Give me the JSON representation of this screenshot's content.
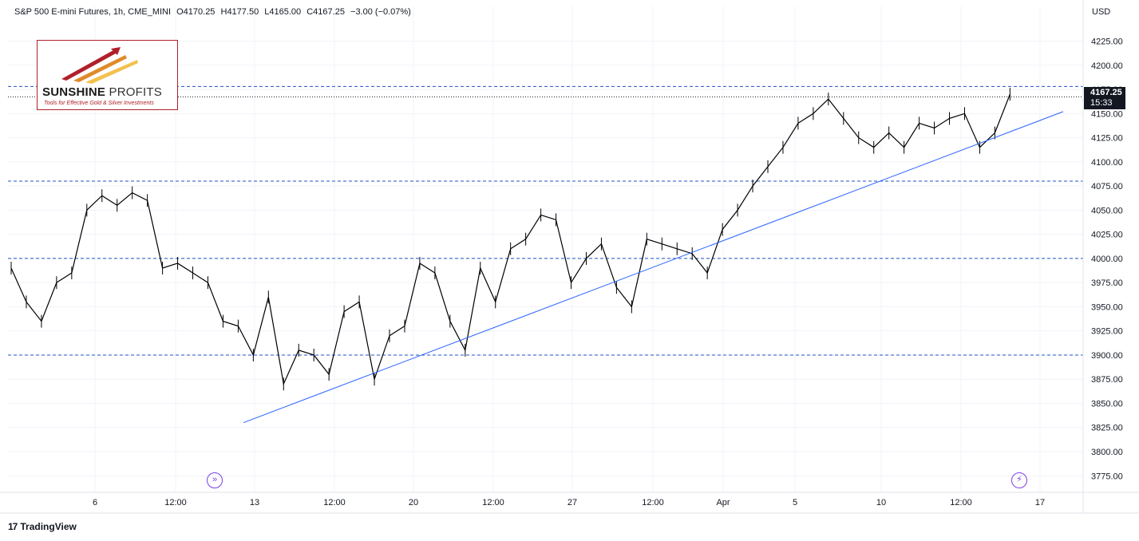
{
  "header": {
    "symbol": "S&P 500 E-mini Futures, 1h, CME_MINI",
    "open": "O4170.25",
    "high": "H4177.50",
    "low": "L4165.00",
    "close": "C4167.25",
    "change": "−3.00 (−0.07%)"
  },
  "currency": "USD",
  "logo": {
    "name_bold": "SUNSHINE",
    "name_rest": "PROFITS",
    "tagline": "Tools for Effective Gold & Silver Investments"
  },
  "price_tag": {
    "price": "4167.25",
    "countdown": "15:33"
  },
  "footer": {
    "brand": "TradingView",
    "icon": "tradingview-logo-icon"
  },
  "buttons": {
    "left_icon": "forward-arrows-icon",
    "right_icon": "lightning-icon"
  },
  "colors": {
    "candle": "#000000",
    "trendline": "#2962ff",
    "level_line": "#2151c7",
    "grid": "#f0f3fa",
    "price_tag_bg": "#131722",
    "icon_accent": "#7b3fe4"
  },
  "chart_data": {
    "type": "line",
    "title": "S&P 500 E-mini Futures, 1h, CME_MINI",
    "ylim": [
      3762,
      4237
    ],
    "y_ticks": [
      3775,
      3800,
      3825,
      3850,
      3875,
      3900,
      3925,
      3950,
      3975,
      4000,
      4025,
      4050,
      4075,
      4100,
      4125,
      4150,
      4175,
      4200,
      4225
    ],
    "y_tick_labels": [
      "3775.00",
      "3800.00",
      "3825.00",
      "3850.00",
      "3875.00",
      "3900.00",
      "3925.00",
      "3950.00",
      "3975.00",
      "4000.00",
      "4025.00",
      "4050.00",
      "4075.00",
      "4100.00",
      "4125.00",
      "4150.00",
      "4175.00",
      "4200.00",
      "4225.00"
    ],
    "x_ticks": [
      "6",
      "12:00",
      "13",
      "12:00",
      "20",
      "12:00",
      "27",
      "12:00",
      "Apr",
      "5",
      "10",
      "12:00",
      "17"
    ],
    "horizontal_levels": [
      4178,
      4080,
      4000,
      3900
    ],
    "last_price": 4167.25,
    "trendline": {
      "points": [
        [
          0,
          3830
        ],
        [
          100,
          4152
        ]
      ]
    },
    "series": [
      {
        "x": [
          0,
          1.5,
          3,
          4.5,
          6,
          7.5,
          9,
          10.5,
          12,
          13.5,
          15,
          16.5,
          18,
          19.5,
          21,
          22.5,
          24,
          25.5,
          27,
          28.5,
          30,
          31.5,
          33,
          34.5,
          36,
          37.5,
          39,
          40.5,
          42,
          43.5,
          45,
          46.5,
          48,
          49.5,
          51,
          52.5,
          54,
          55.5,
          57,
          58.5,
          60,
          61.5,
          63,
          64.5,
          66,
          67.5,
          69,
          70.5,
          72,
          73.5,
          75,
          76.5,
          78,
          79.5,
          81,
          82.5,
          84,
          85.5,
          87,
          88.5,
          90,
          91.5,
          93,
          94.5,
          96,
          97.5,
          99
        ],
        "values": [
          3990,
          3955,
          3935,
          3975,
          3985,
          4050,
          4065,
          4055,
          4068,
          4060,
          3990,
          3995,
          3985,
          3975,
          3935,
          3930,
          3900,
          3960,
          3870,
          3905,
          3900,
          3880,
          3945,
          3955,
          3875,
          3920,
          3930,
          3995,
          3985,
          3935,
          3905,
          3990,
          3955,
          4010,
          4020,
          4045,
          4040,
          3975,
          4000,
          4015,
          3970,
          3950,
          4020,
          4015,
          4010,
          4005,
          3985,
          4030,
          4050,
          4075,
          4095,
          4115,
          4140,
          4150,
          4165,
          4145,
          4125,
          4115,
          4130,
          4115,
          4140,
          4135,
          4145,
          4150,
          4115,
          4130,
          4170
        ]
      }
    ]
  }
}
